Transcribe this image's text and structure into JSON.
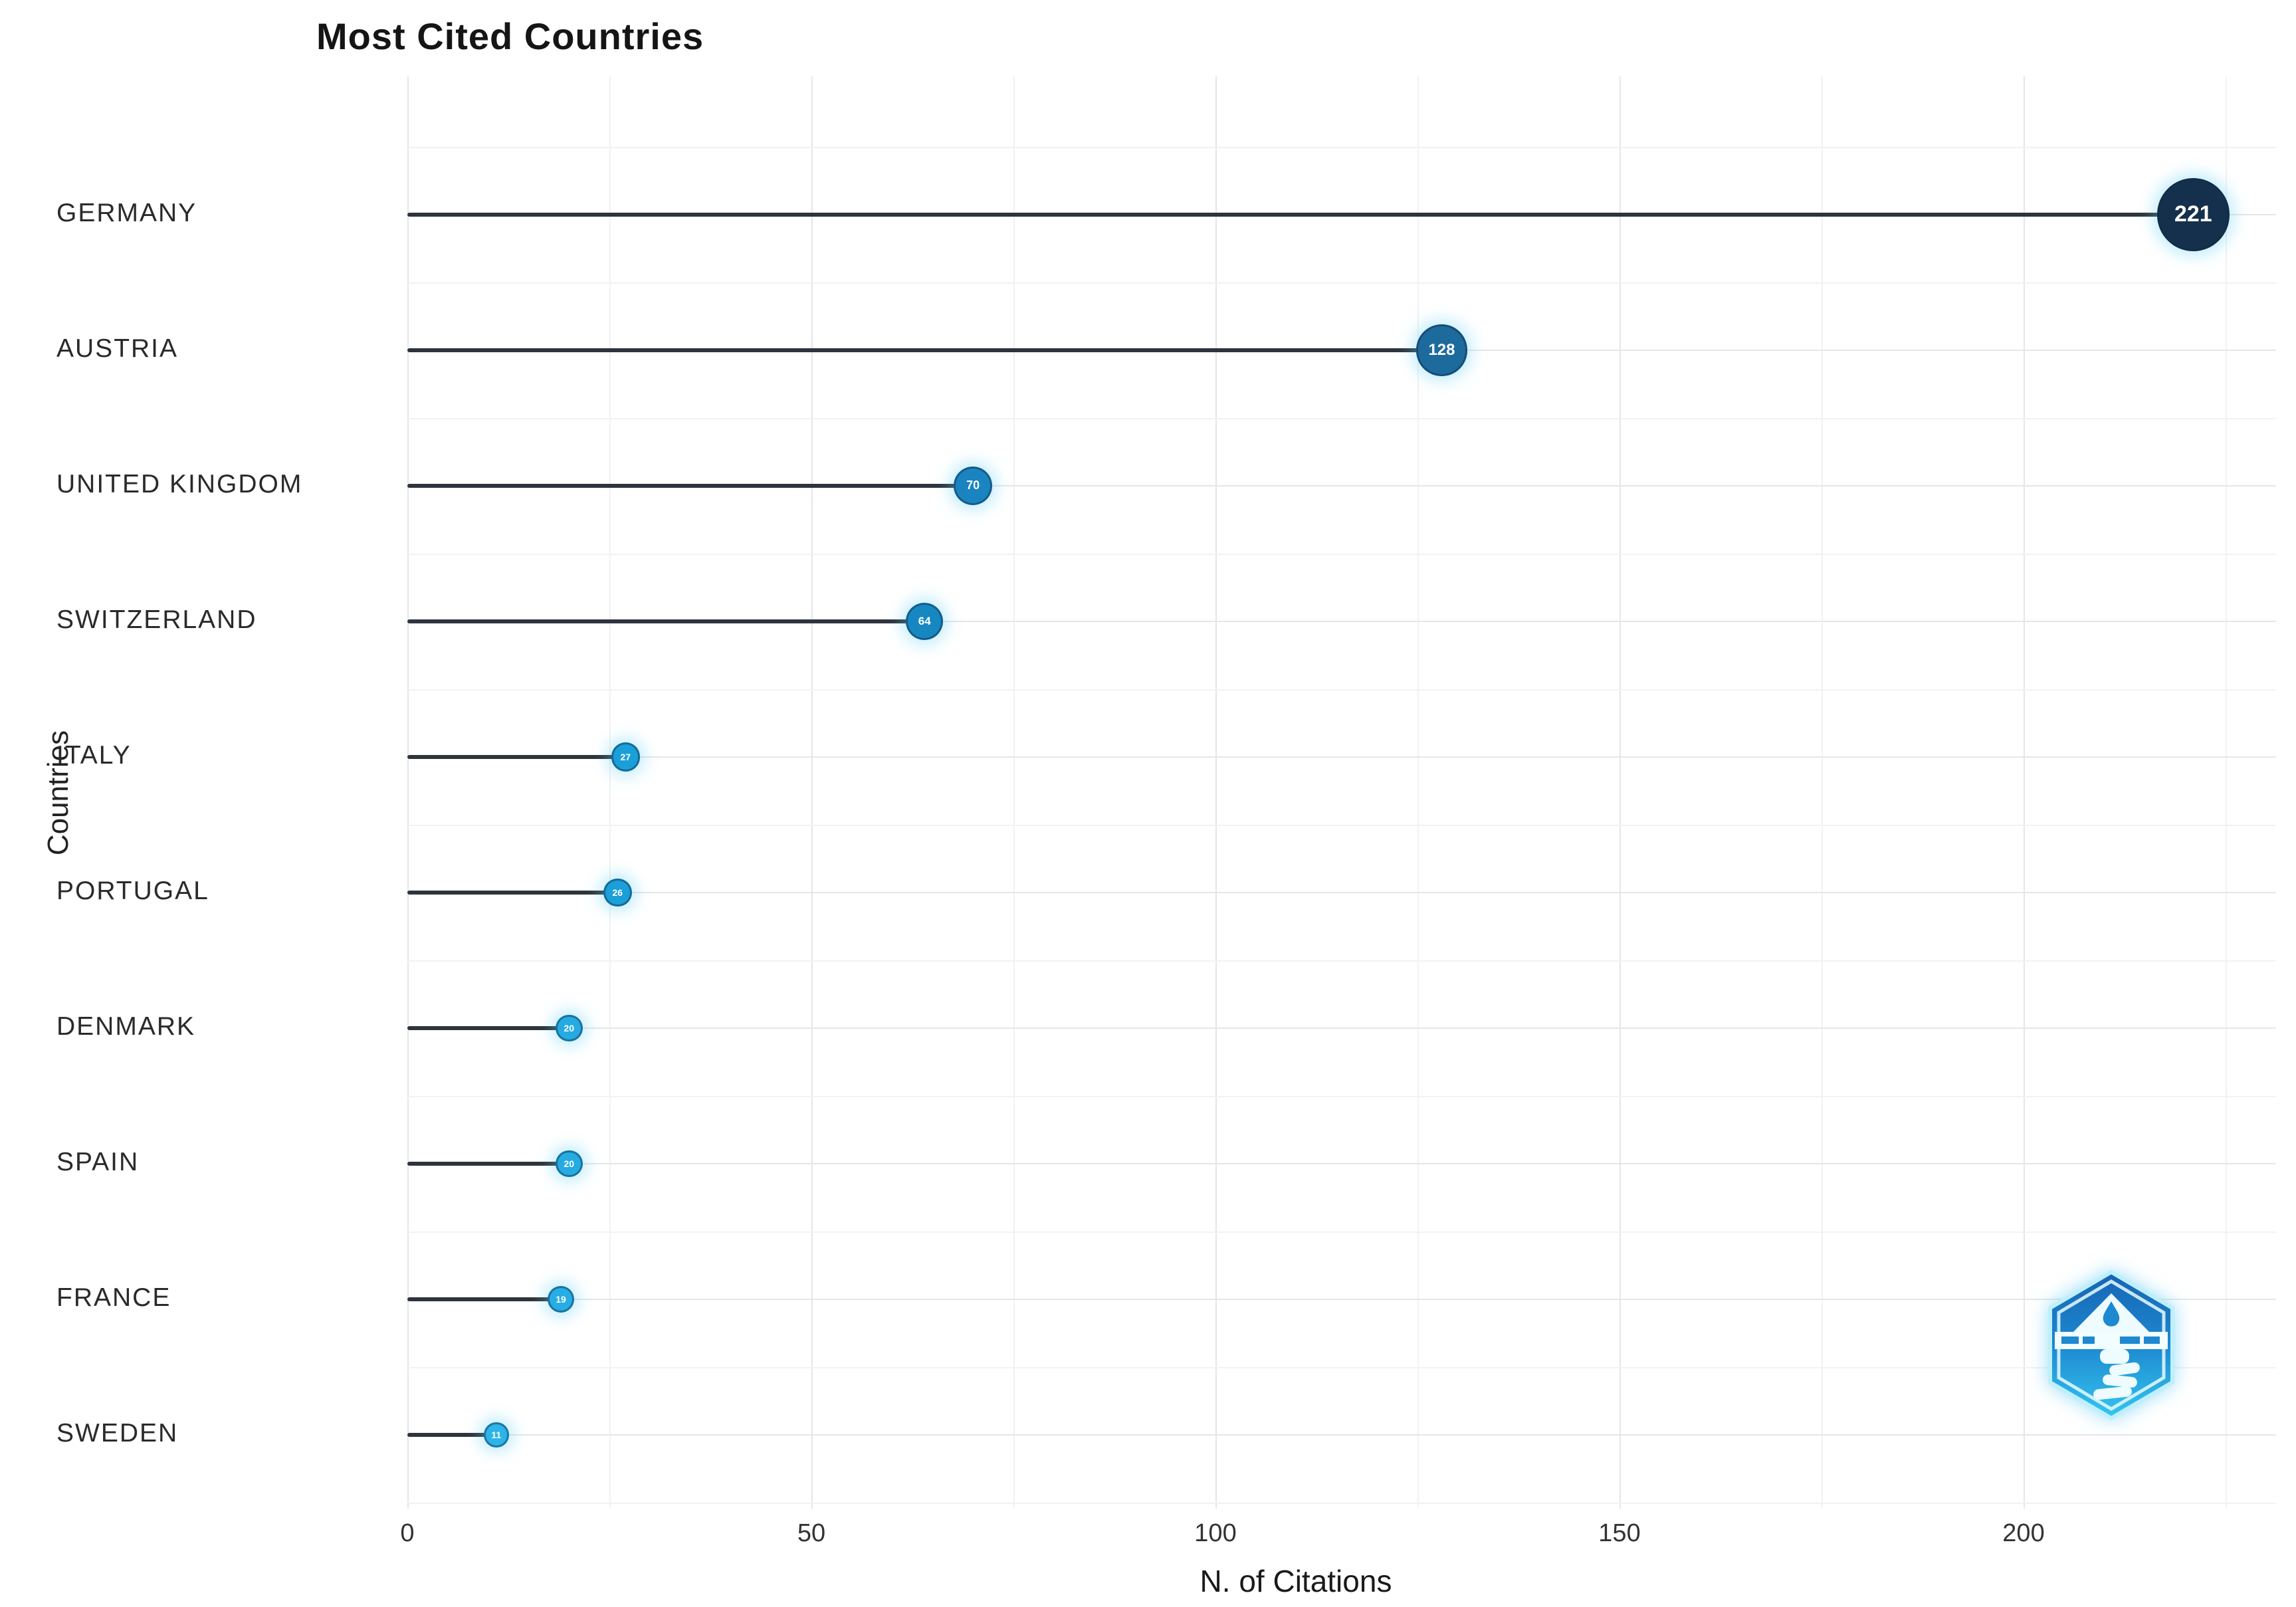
{
  "title": "Most Cited Countries",
  "axes": {
    "x_label": "N. of Citations",
    "y_label": "Countries"
  },
  "chart_data": {
    "type": "bar",
    "variant": "horizontal-lollipop",
    "title": "Most Cited Countries",
    "xlabel": "N. of Citations",
    "ylabel": "Countries",
    "xlim": [
      0,
      230
    ],
    "x_ticks": [
      0,
      50,
      100,
      150,
      200
    ],
    "x_minor_ticks": [
      25,
      75,
      125,
      175,
      225
    ],
    "grid": "major-and-minor",
    "legend": "none",
    "categories": [
      "GERMANY",
      "AUSTRIA",
      "UNITED KINGDOM",
      "SWITZERLAND",
      "ITALY",
      "PORTUGAL",
      "DENMARK",
      "SPAIN",
      "FRANCE",
      "SWEDEN"
    ],
    "values": [
      221,
      128,
      70,
      64,
      27,
      26,
      20,
      20,
      19,
      11
    ],
    "point_colors": [
      "#14304c",
      "#1d6b9c",
      "#1a84c0",
      "#1787c2",
      "#1b9fd8",
      "#1b9fd8",
      "#25abe2",
      "#25abe2",
      "#27ade4",
      "#2db4e9"
    ],
    "stick_color": "#2e343c",
    "value_label_color": "#ffffff"
  },
  "logo": {
    "shape": "hexagon-badge",
    "primary_color": "#1e88d0",
    "accent_color": "#35c7f0"
  }
}
